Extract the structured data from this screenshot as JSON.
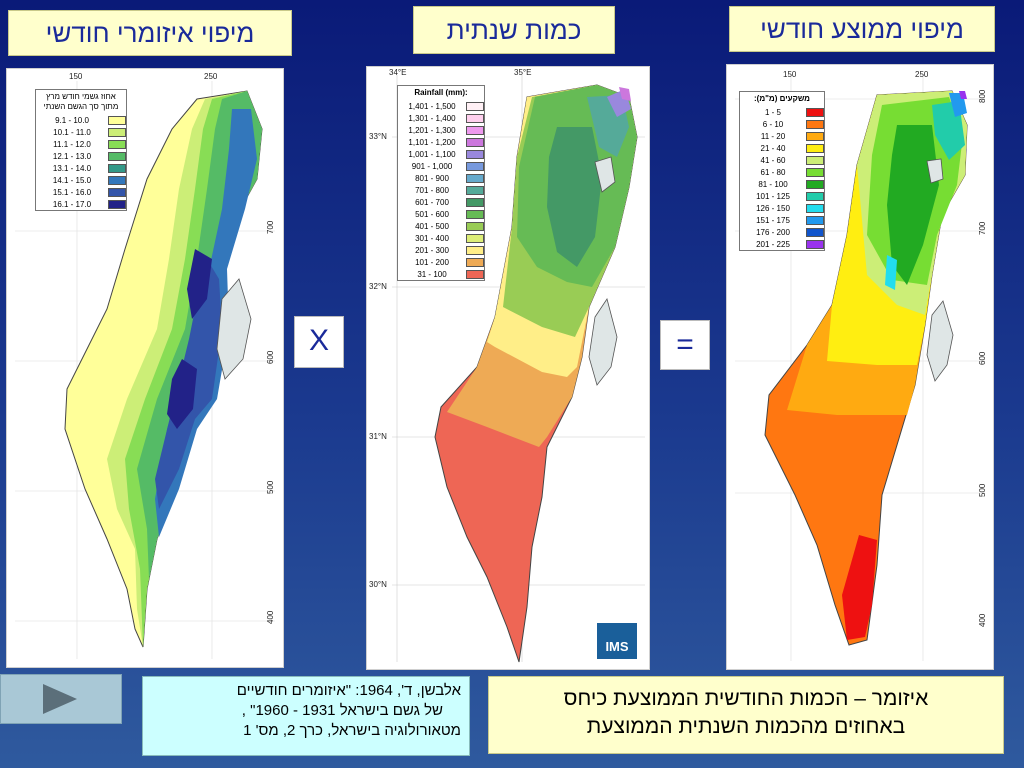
{
  "titles": {
    "left": "מיפוי איזומרי חודשי",
    "middle": "כמות שנתית",
    "right": "מיפוי ממוצע חודשי"
  },
  "operators": {
    "multiply": "X",
    "equals": "="
  },
  "left_map": {
    "axis_top": [
      "150",
      "250"
    ],
    "axis_right": [
      "700",
      "600",
      "500",
      "400"
    ],
    "legend": {
      "header_lines": [
        "אחוז גשמי חודש מרץ",
        "מתוך סך הגשם השנתי"
      ],
      "items": [
        {
          "label": "9.1 - 10.0",
          "color": "#ffff99"
        },
        {
          "label": "10.1 - 11.0",
          "color": "#ccee77"
        },
        {
          "label": "11.1 - 12.0",
          "color": "#88dd55"
        },
        {
          "label": "12.1 - 13.0",
          "color": "#55bb66"
        },
        {
          "label": "13.1 - 14.0",
          "color": "#339988"
        },
        {
          "label": "14.1 - 15.0",
          "color": "#3377bb"
        },
        {
          "label": "15.1 - 16.0",
          "color": "#3355aa"
        },
        {
          "label": "16.1 - 17.0",
          "color": "#222288"
        }
      ]
    }
  },
  "middle_map": {
    "axis_top": [
      "34°E",
      "35°E"
    ],
    "axis_left": [
      "33°N",
      "32°N",
      "31°N",
      "30°N"
    ],
    "legend": {
      "header": "Rainfall (mm):",
      "items": [
        {
          "label": "1,401 - 1,500",
          "color": "#fff0f5"
        },
        {
          "label": "1,301 - 1,400",
          "color": "#ffd0ee"
        },
        {
          "label": "1,201 - 1,300",
          "color": "#ee99ee"
        },
        {
          "label": "1,101 - 1,200",
          "color": "#cc77dd"
        },
        {
          "label": "1,001 - 1,100",
          "color": "#9988dd"
        },
        {
          "label": "901 - 1,000",
          "color": "#7799dd"
        },
        {
          "label": "801 - 900",
          "color": "#66aacc"
        },
        {
          "label": "701 - 800",
          "color": "#55aa99"
        },
        {
          "label": "601 - 700",
          "color": "#449966"
        },
        {
          "label": "501 - 600",
          "color": "#66bb55"
        },
        {
          "label": "401 - 500",
          "color": "#99cc55"
        },
        {
          "label": "301 - 400",
          "color": "#ddee77"
        },
        {
          "label": "201 - 300",
          "color": "#ffee88"
        },
        {
          "label": "101 - 200",
          "color": "#eeaa55"
        },
        {
          "label": "31 - 100",
          "color": "#ee6655"
        }
      ]
    },
    "logo": "IMS"
  },
  "right_map": {
    "axis_top": [
      "150",
      "250"
    ],
    "axis_right": [
      "800",
      "700",
      "600",
      "500",
      "400"
    ],
    "legend": {
      "header": "משקעים (מ\"מ):",
      "items": [
        {
          "label": "1 - 5",
          "color": "#ee1111"
        },
        {
          "label": "6 - 10",
          "color": "#ff7711"
        },
        {
          "label": "11 - 20",
          "color": "#ffaa11"
        },
        {
          "label": "21 - 40",
          "color": "#ffee11"
        },
        {
          "label": "41 - 60",
          "color": "#ccee77"
        },
        {
          "label": "61 - 80",
          "color": "#77dd33"
        },
        {
          "label": "81 - 100",
          "color": "#22aa22"
        },
        {
          "label": "101 - 125",
          "color": "#22ccaa"
        },
        {
          "label": "126 - 150",
          "color": "#22ddee"
        },
        {
          "label": "151 - 175",
          "color": "#2299ee"
        },
        {
          "label": "176 - 200",
          "color": "#1155cc"
        },
        {
          "label": "201 - 225",
          "color": "#9933ee"
        }
      ]
    }
  },
  "citation": {
    "line1": "אלבשן, ד', 1964: \"איזומרים חודשיים",
    "line2": "של גשם בישראל 1931 - 1960\" ,",
    "line3": "מטאורולוגיה בישראל, כרך 2, מס' 1"
  },
  "definition": {
    "line1": "איזומר – הכמות החודשית הממוצעת כיחס",
    "line2": "באחוזים מהכמות השנתית הממוצעת"
  },
  "colors": {
    "title_bg": "#ffffcc",
    "title_text": "#1a2a9a",
    "citation_bg": "#ccffff",
    "play_button": "#a9c8d6"
  }
}
